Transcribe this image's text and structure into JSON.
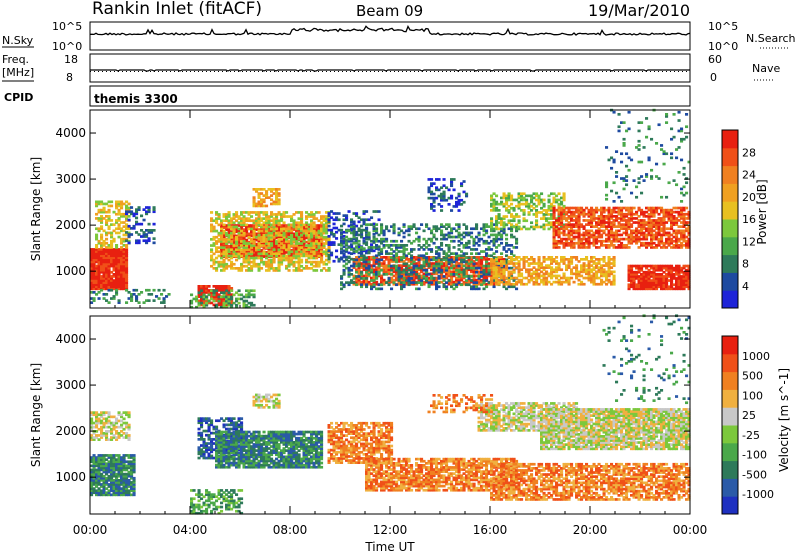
{
  "header": {
    "station": "Rankin Inlet (fitACF)",
    "beam": "Beam 09",
    "date": "19/Mar/2010"
  },
  "sky_panel": {
    "left_label": "N.Sky",
    "left_ticks": [
      "10^5",
      "10^0"
    ],
    "right_ticks": [
      "10^5",
      "10^0"
    ],
    "right_label": "N.Search"
  },
  "freq_panel": {
    "left_label_1": "Freq.",
    "left_label_2": "[MHz]",
    "left_ticks": [
      "18",
      "8"
    ],
    "right_ticks": [
      "60",
      "0"
    ],
    "right_label": "Nave"
  },
  "cpid_panel": {
    "label": "CPID",
    "value": "themis 3300"
  },
  "chart_data": [
    {
      "type": "heatmap",
      "name": "power",
      "ylabel": "Slant Range [km]",
      "ylim": [
        200,
        4500
      ],
      "yticks": [
        1000,
        2000,
        3000,
        4000
      ],
      "xlim": [
        "00:00",
        "24:00"
      ],
      "colorbar": {
        "label": "Power [dB]",
        "ticks": [
          "28",
          "24",
          "20",
          "16",
          "12",
          "8",
          "4"
        ],
        "colors": [
          "#1e24d8",
          "#1e4aa0",
          "#2e7a5a",
          "#4aa84a",
          "#7cc83c",
          "#e8c020",
          "#f0a020",
          "#f08020",
          "#f05018",
          "#e82010"
        ]
      },
      "regions": [
        {
          "t0": 0.0,
          "t1": 1.5,
          "r0": 600,
          "r1": 1500,
          "level": 9,
          "density": 0.95
        },
        {
          "t0": 0.2,
          "t1": 1.6,
          "r0": 1500,
          "r1": 2500,
          "level": 5,
          "density": 0.5
        },
        {
          "t0": 1.4,
          "t1": 2.6,
          "r0": 1600,
          "r1": 2400,
          "level": 1,
          "density": 0.35
        },
        {
          "t0": 0.0,
          "t1": 3.2,
          "r0": 300,
          "r1": 600,
          "level": 2,
          "density": 0.3
        },
        {
          "t0": 4.3,
          "t1": 5.6,
          "r0": 250,
          "r1": 700,
          "level": 9,
          "density": 0.85
        },
        {
          "t0": 4.0,
          "t1": 6.5,
          "r0": 200,
          "r1": 600,
          "level": 3,
          "density": 0.4
        },
        {
          "t0": 5.2,
          "t1": 9.2,
          "r0": 1300,
          "r1": 2000,
          "level": 9,
          "density": 0.9
        },
        {
          "t0": 4.8,
          "t1": 9.5,
          "r0": 1000,
          "r1": 2300,
          "level": 5,
          "density": 0.55
        },
        {
          "t0": 6.5,
          "t1": 7.5,
          "r0": 2400,
          "r1": 2800,
          "level": 6,
          "density": 0.6
        },
        {
          "t0": 9.5,
          "t1": 11.5,
          "r0": 1200,
          "r1": 2300,
          "level": 1,
          "density": 0.35
        },
        {
          "t0": 10.5,
          "t1": 16.5,
          "r0": 700,
          "r1": 1300,
          "level": 8,
          "density": 0.75
        },
        {
          "t0": 10.0,
          "t1": 17.0,
          "r0": 600,
          "r1": 2000,
          "level": 2,
          "density": 0.35
        },
        {
          "t0": 13.5,
          "t1": 15.0,
          "r0": 2300,
          "r1": 3000,
          "level": 1,
          "density": 0.3
        },
        {
          "t0": 16.0,
          "t1": 19.0,
          "r0": 1900,
          "r1": 2700,
          "level": 4,
          "density": 0.5
        },
        {
          "t0": 16.0,
          "t1": 21.0,
          "r0": 700,
          "r1": 1300,
          "level": 6,
          "density": 0.6
        },
        {
          "t0": 18.5,
          "t1": 24.0,
          "r0": 1500,
          "r1": 2400,
          "level": 8,
          "density": 0.7
        },
        {
          "t0": 21.5,
          "t1": 24.0,
          "r0": 600,
          "r1": 1100,
          "level": 9,
          "density": 0.85
        },
        {
          "t0": 20.5,
          "t1": 24.0,
          "r0": 2500,
          "r1": 4500,
          "level": 2,
          "density": 0.08
        }
      ]
    },
    {
      "type": "heatmap",
      "name": "velocity",
      "ylabel": "Slant Range [km]",
      "ylim": [
        200,
        4500
      ],
      "yticks": [
        1000,
        2000,
        3000,
        4000
      ],
      "xlim": [
        "00:00",
        "24:00"
      ],
      "xticks": [
        "00:00",
        "04:00",
        "08:00",
        "12:00",
        "16:00",
        "20:00",
        "00:00"
      ],
      "xlabel": "Time UT",
      "colorbar": {
        "label": "Velocity [m s^-1]",
        "ticks": [
          "1000",
          "500",
          "100",
          "25",
          "-25",
          "-100",
          "-500",
          "-1000"
        ],
        "colors": [
          "#1e30c0",
          "#2a5aa8",
          "#2e7a5a",
          "#4aa84a",
          "#7cc83c",
          "#c8c8c8",
          "#f0b040",
          "#f08020",
          "#f05018",
          "#e82010"
        ]
      },
      "regions": [
        {
          "t0": 0.0,
          "t1": 1.8,
          "r0": 600,
          "r1": 1500,
          "level": 2,
          "density": 0.9
        },
        {
          "t0": 0.0,
          "t1": 1.6,
          "r0": 1800,
          "r1": 2400,
          "level": 5,
          "density": 0.6
        },
        {
          "t0": 4.3,
          "t1": 6.0,
          "r0": 1400,
          "r1": 2300,
          "level": 1,
          "density": 0.6
        },
        {
          "t0": 5.0,
          "t1": 9.2,
          "r0": 1200,
          "r1": 2000,
          "level": 2,
          "density": 0.85
        },
        {
          "t0": 4.0,
          "t1": 6.0,
          "r0": 200,
          "r1": 700,
          "level": 3,
          "density": 0.5
        },
        {
          "t0": 6.5,
          "t1": 7.5,
          "r0": 2500,
          "r1": 2800,
          "level": 5,
          "density": 0.6
        },
        {
          "t0": 9.5,
          "t1": 12.0,
          "r0": 1300,
          "r1": 2200,
          "level": 7,
          "density": 0.7
        },
        {
          "t0": 11.0,
          "t1": 17.0,
          "r0": 700,
          "r1": 1400,
          "level": 7,
          "density": 0.75
        },
        {
          "t0": 15.5,
          "t1": 19.5,
          "r0": 2000,
          "r1": 2600,
          "level": 5,
          "density": 0.7
        },
        {
          "t0": 18.0,
          "t1": 24.0,
          "r0": 1600,
          "r1": 2500,
          "level": 5,
          "density": 0.85
        },
        {
          "t0": 16.0,
          "t1": 24.0,
          "r0": 500,
          "r1": 1300,
          "level": 7,
          "density": 0.7
        },
        {
          "t0": 13.5,
          "t1": 16.0,
          "r0": 2400,
          "r1": 2800,
          "level": 7,
          "density": 0.35
        },
        {
          "t0": 20.5,
          "t1": 24.0,
          "r0": 2600,
          "r1": 4500,
          "level": 2,
          "density": 0.08
        }
      ]
    }
  ]
}
